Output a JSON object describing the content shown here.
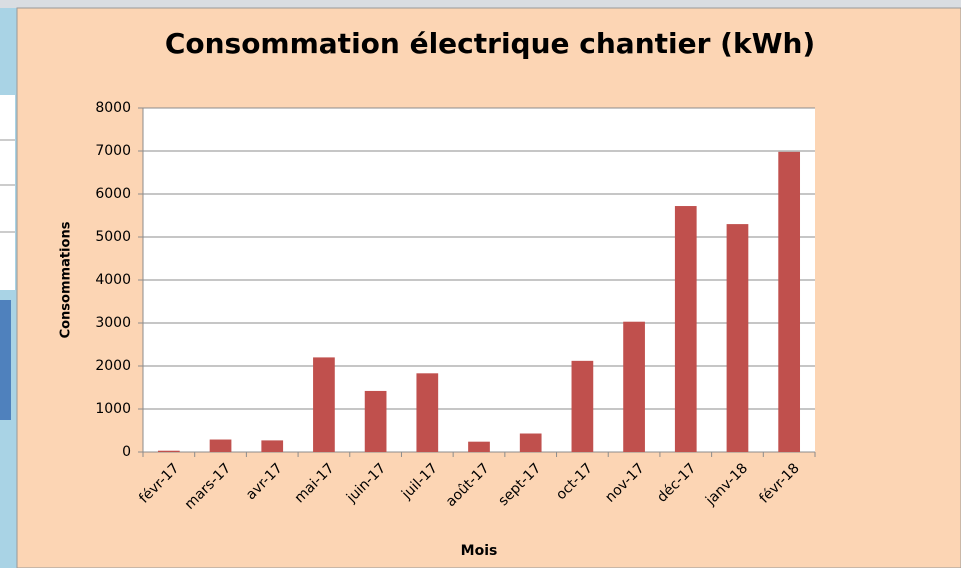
{
  "chart_data": {
    "type": "bar",
    "title": "Consommation  électrique chantier (kWh)",
    "x_label": "Mois",
    "y_label": "Consommations",
    "categories": [
      "févr-17",
      "mars-17",
      "avr-17",
      "mai-17",
      "juin-17",
      "juil-17",
      "août-17",
      "sept-17",
      "oct-17",
      "nov-17",
      "déc-17",
      "janv-18",
      "févr-18"
    ],
    "values": [
      30,
      290,
      270,
      2200,
      1420,
      1830,
      240,
      430,
      2120,
      3030,
      5720,
      5300,
      6980
    ],
    "color": "#c0504d",
    "ylim": [
      0,
      8000
    ],
    "yticks": [
      0,
      1000,
      2000,
      3000,
      4000,
      5000,
      6000,
      7000,
      8000
    ],
    "grid": true
  }
}
